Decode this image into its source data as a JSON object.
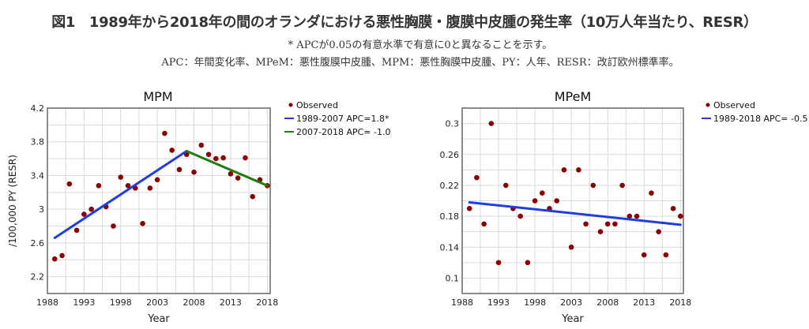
{
  "header": {
    "title": "図1　1989年から2018年の間のオランダにおける悪性胸膜・腹膜中皮腫の発生率（10万人年当たり、RESR）",
    "note_significance": "* APCが0.05の有意水準で有意に0と異なることを示す。",
    "note_abbreviations": "APC：年間変化率、MPeM：悪性腹膜中皮腫、MPM：悪性胸膜中皮腫、PY：人年、RESR：改訂欧州標準率。"
  },
  "colors": {
    "observed": "#8b0000",
    "blue_line": "#1f3de0",
    "green_line": "#1e7d10",
    "grid": "#d9d9d9",
    "frame": "#666666"
  },
  "chart_data": [
    {
      "type": "scatter",
      "title": "MPM",
      "xlabel": "Year",
      "ylabel": "/100,000 PY (RESR)",
      "xlim": [
        1988,
        2018.4
      ],
      "ylim": [
        2.0,
        4.2
      ],
      "xticks": [
        1988,
        1993,
        1998,
        2003,
        2008,
        2013,
        2018
      ],
      "xtick_labels": [
        "1988",
        "1993",
        "1998",
        "2003",
        "2008",
        "2013",
        "2018"
      ],
      "yticks": [
        2.2,
        2.6,
        3,
        3.4,
        3.8,
        4.2
      ],
      "ytick_labels": [
        "2.2",
        "2.6",
        "3",
        "3.4",
        "3.8",
        "4.2"
      ],
      "grid": true,
      "legend_position": "right",
      "series": [
        {
          "name": "Observed",
          "kind": "points",
          "x": [
            1989,
            1990,
            1991,
            1992,
            1993,
            1994,
            1995,
            1996,
            1997,
            1998,
            1999,
            2000,
            2001,
            2002,
            2003,
            2004,
            2005,
            2006,
            2007,
            2008,
            2009,
            2010,
            2011,
            2012,
            2013,
            2014,
            2015,
            2016,
            2017,
            2018
          ],
          "y": [
            2.41,
            2.45,
            3.3,
            2.75,
            2.94,
            3.0,
            3.28,
            3.03,
            2.8,
            3.38,
            3.28,
            3.25,
            2.83,
            3.25,
            3.35,
            3.9,
            3.7,
            3.47,
            3.65,
            3.44,
            3.76,
            3.65,
            3.6,
            3.61,
            3.42,
            3.37,
            3.61,
            3.15,
            3.35,
            3.28
          ]
        },
        {
          "name": "1989-2007 APC=1.8*",
          "kind": "line",
          "color_key": "blue_line",
          "x": [
            1989,
            2007
          ],
          "y": [
            2.66,
            3.69
          ]
        },
        {
          "name": "2007-2018 APC= -1.0",
          "kind": "line",
          "color_key": "green_line",
          "x": [
            2007,
            2018
          ],
          "y": [
            3.69,
            3.28
          ]
        }
      ]
    },
    {
      "type": "scatter",
      "title": "MPeM",
      "xlabel": "Year",
      "ylabel": "",
      "xlim": [
        1988,
        2018.4
      ],
      "ylim": [
        0.08,
        0.32
      ],
      "xticks": [
        1988,
        1993,
        1998,
        2003,
        2008,
        2013,
        2018
      ],
      "xtick_labels": [
        "1988",
        "1993",
        "1998",
        "2003",
        "2008",
        "2013",
        "2018"
      ],
      "yticks": [
        0.1,
        0.14,
        0.18,
        0.22,
        0.26,
        0.3
      ],
      "ytick_labels": [
        "0.1",
        "0.14",
        "0.18",
        "0.22",
        "0.26",
        "0.3"
      ],
      "grid": true,
      "legend_position": "right",
      "series": [
        {
          "name": "Observed",
          "kind": "points",
          "x": [
            1989,
            1990,
            1991,
            1992,
            1993,
            1994,
            1995,
            1996,
            1997,
            1998,
            1999,
            2000,
            2001,
            2002,
            2003,
            2004,
            2005,
            2006,
            2007,
            2008,
            2009,
            2010,
            2011,
            2012,
            2013,
            2014,
            2015,
            2016,
            2017,
            2018
          ],
          "y": [
            0.19,
            0.23,
            0.17,
            0.3,
            0.12,
            0.22,
            0.19,
            0.18,
            0.12,
            0.2,
            0.21,
            0.19,
            0.2,
            0.24,
            0.14,
            0.24,
            0.17,
            0.22,
            0.16,
            0.17,
            0.17,
            0.22,
            0.18,
            0.18,
            0.13,
            0.21,
            0.16,
            0.13,
            0.19,
            0.18
          ]
        },
        {
          "name": "1989-2018 APC= -0.5",
          "kind": "line",
          "color_key": "blue_line",
          "x": [
            1989,
            2018
          ],
          "y": [
            0.198,
            0.169
          ]
        }
      ]
    }
  ]
}
